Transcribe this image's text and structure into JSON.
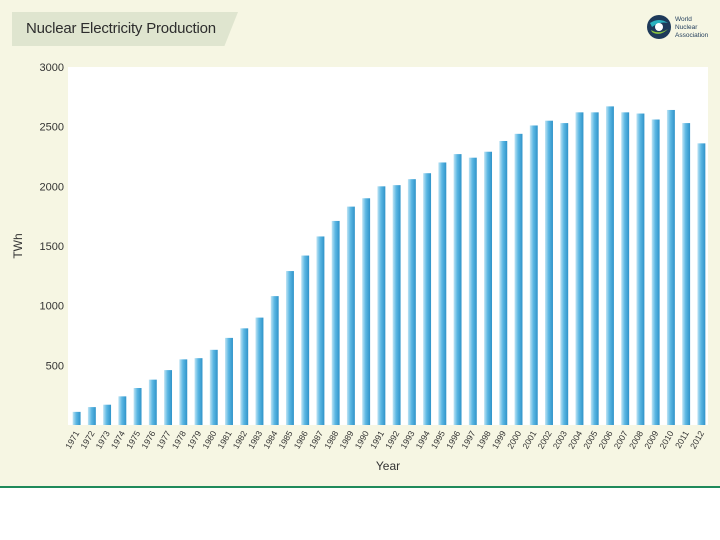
{
  "slide": {
    "title": "Nuclear Electricity Production",
    "logo_text": "World Nuclear Association",
    "colors": {
      "bar_top": "#bfe4f4",
      "bar_mid": "#5bb7e3",
      "bar_dark": "#2f93c9",
      "plot_bg": "#ffffff",
      "accent_line": "#1f8a5a"
    }
  },
  "chart_data": {
    "type": "bar",
    "title": "Nuclear Electricity Production",
    "xlabel": "Year",
    "ylabel": "TWh",
    "ylim": [
      0,
      3000
    ],
    "yticks": [
      500,
      1000,
      1500,
      2000,
      2500,
      3000
    ],
    "grid": false,
    "categories": [
      "1971",
      "1972",
      "1973",
      "1974",
      "1975",
      "1976",
      "1977",
      "1978",
      "1979",
      "1980",
      "1981",
      "1982",
      "1983",
      "1984",
      "1985",
      "1986",
      "1987",
      "1988",
      "1989",
      "1990",
      "1991",
      "1992",
      "1993",
      "1994",
      "1995",
      "1996",
      "1997",
      "1998",
      "1999",
      "2000",
      "2001",
      "2002",
      "2003",
      "2004",
      "2005",
      "2006",
      "2007",
      "2008",
      "2009",
      "2010",
      "2011",
      "2012"
    ],
    "values": [
      110,
      150,
      170,
      240,
      310,
      380,
      460,
      550,
      560,
      630,
      730,
      810,
      900,
      1080,
      1290,
      1420,
      1580,
      1710,
      1830,
      1900,
      2000,
      2010,
      2060,
      2110,
      2200,
      2270,
      2240,
      2290,
      2380,
      2440,
      2510,
      2550,
      2530,
      2620,
      2620,
      2670,
      2620,
      2610,
      2560,
      2640,
      2530,
      2360
    ]
  }
}
